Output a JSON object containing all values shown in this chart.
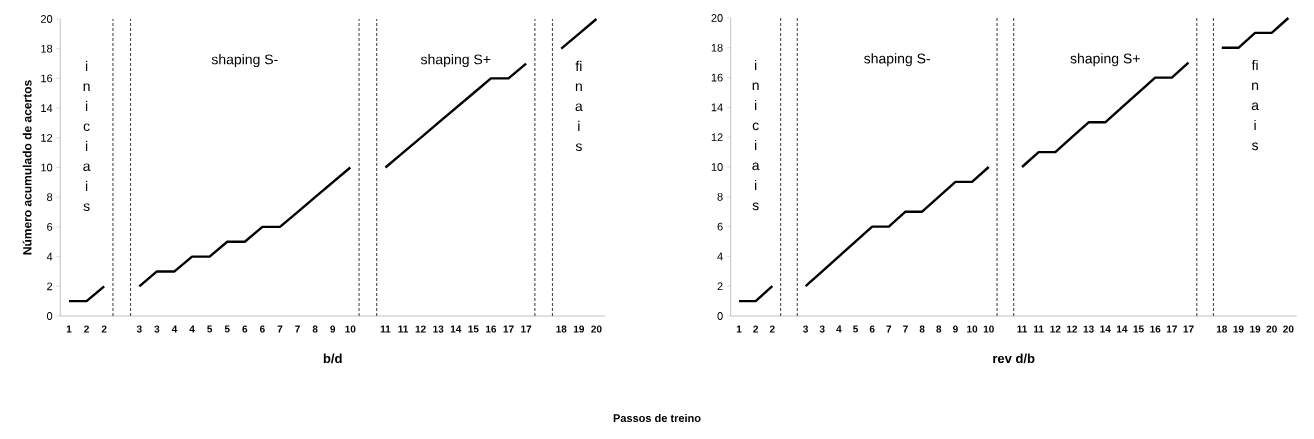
{
  "chart_data": [
    {
      "type": "line",
      "color": "#000000",
      "marker": "none",
      "line_style": "solid",
      "categories": [
        "1",
        "2",
        "2",
        null,
        "3",
        "3",
        "4",
        "4",
        "5",
        "5",
        "6",
        "6",
        "7",
        "7",
        "8",
        "9",
        "10",
        null,
        "11",
        "11",
        "12",
        "13",
        "14",
        "15",
        "16",
        "17",
        "17",
        null,
        "18",
        "19",
        "20"
      ],
      "values": [
        1,
        1,
        2,
        null,
        2,
        3,
        3,
        4,
        4,
        5,
        5,
        6,
        6,
        7,
        8,
        9,
        10,
        null,
        10,
        11,
        12,
        13,
        14,
        15,
        16,
        16,
        17,
        null,
        18,
        19,
        20
      ],
      "ylim": [
        0,
        20
      ],
      "yticks": [
        0,
        2,
        4,
        6,
        8,
        10,
        12,
        14,
        16,
        18,
        20
      ],
      "xlabel": "b/d",
      "ylabel": "Número acumulado de acertos",
      "annotations": [
        "iniciais",
        "shaping S-",
        "shaping S+",
        "finais",
        "Passos de treino"
      ]
    },
    {
      "type": "line",
      "color": "#000000",
      "marker": "none",
      "line_style": "solid",
      "categories": [
        "1",
        "2",
        "2",
        null,
        "3",
        "3",
        "4",
        "5",
        "6",
        "7",
        "7",
        "8",
        "8",
        "9",
        "10",
        "10",
        null,
        "11",
        "11",
        "12",
        "12",
        "13",
        "14",
        "14",
        "15",
        "16",
        "17",
        "17",
        null,
        "18",
        "19",
        "19",
        "20",
        "20"
      ],
      "values": [
        1,
        1,
        2,
        null,
        2,
        3,
        4,
        5,
        6,
        6,
        7,
        7,
        8,
        9,
        9,
        10,
        null,
        10,
        11,
        11,
        12,
        13,
        13,
        14,
        15,
        16,
        16,
        17,
        null,
        18,
        18,
        19,
        19,
        20
      ],
      "ylim": [
        0,
        20
      ],
      "yticks": [
        0,
        2,
        4,
        6,
        8,
        10,
        12,
        14,
        16,
        18,
        20
      ],
      "xlabel": "rev d/b",
      "annotations": [
        "iniciais",
        "shaping S-",
        "shaping S+",
        "finais"
      ]
    }
  ]
}
